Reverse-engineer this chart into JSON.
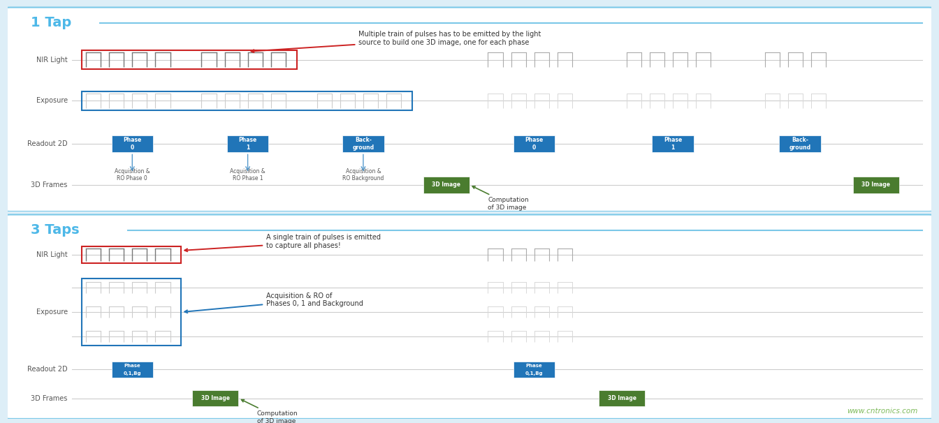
{
  "bg_color": "#ddeef7",
  "panel_bg": "#ffffff",
  "border_color": "#5ba3c9",
  "title1": "1 Tap",
  "title2": "3 Taps",
  "title_color": "#4db8e8",
  "label_color": "#555555",
  "blue_box_color": "#2175b8",
  "green_box_color": "#4a7c2f",
  "watermark": "www.cntronics.com",
  "watermark_color": "#7dba5a",
  "fig_w": 13.44,
  "fig_h": 6.06,
  "dpi": 100
}
